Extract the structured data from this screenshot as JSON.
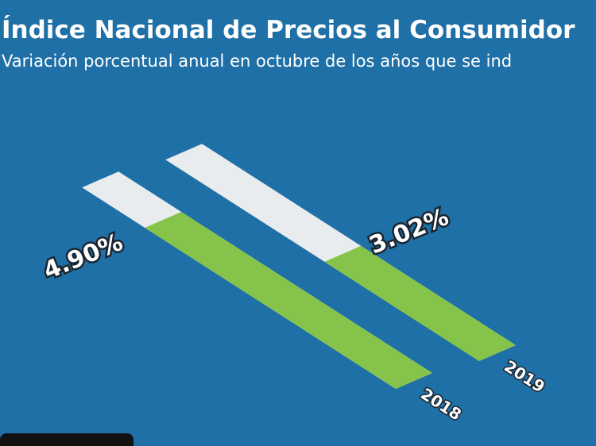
{
  "chart_data": {
    "type": "bar",
    "title": "Índice Nacional de Precios al Consumidor",
    "subtitle": "Variación porcentual anual en octubre de los años que se ind",
    "categories": [
      "2018",
      "2019"
    ],
    "values": [
      4.9,
      3.02
    ],
    "value_labels": [
      "4.90%",
      "3.02%"
    ],
    "color": "#86c34a"
  }
}
